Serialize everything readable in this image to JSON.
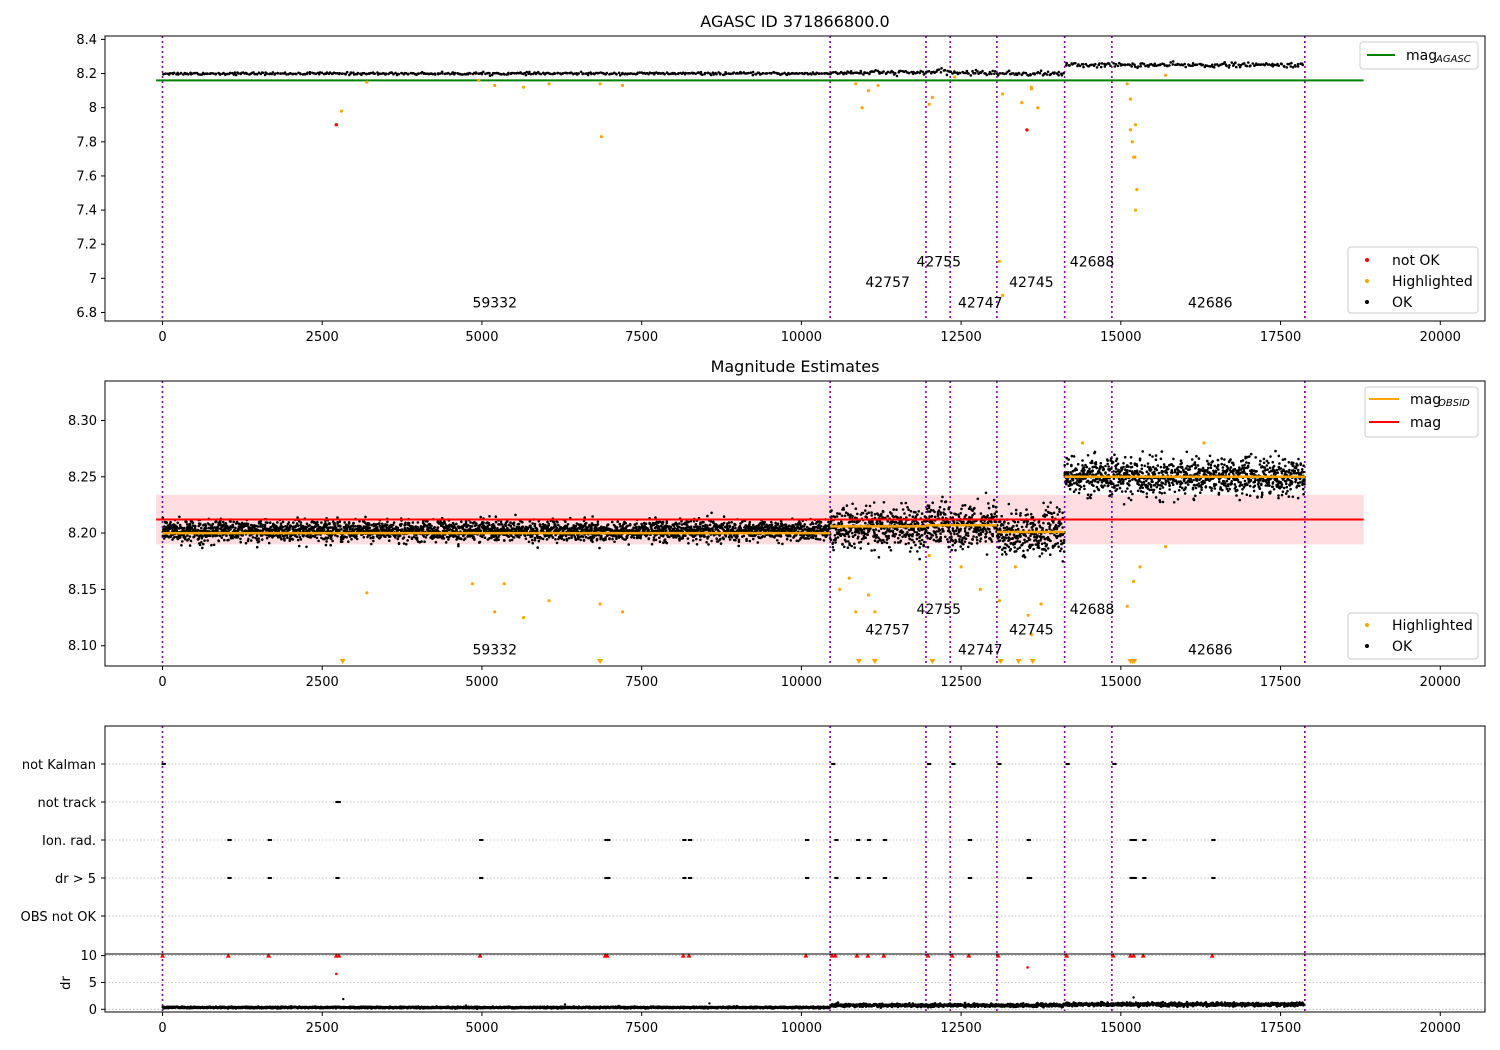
{
  "chart_data": [
    {
      "type": "scatter",
      "title": "AGASC ID 371866800.0",
      "xlabel": "",
      "ylabel": "",
      "xlim": [
        -900,
        20700
      ],
      "ylim": [
        6.75,
        8.42
      ],
      "x_ticks": [
        0,
        2500,
        5000,
        7500,
        10000,
        12500,
        15000,
        17500,
        20000
      ],
      "y_ticks": [
        6.8,
        7.0,
        7.2,
        7.4,
        7.6,
        7.8,
        8.0,
        8.2,
        8.4
      ],
      "legend_placement_lines": "top-right",
      "legend_placement_points": "bottom-right",
      "legend_lines": [
        {
          "label": "mag",
          "sub": "AGASC",
          "color": "#008000"
        }
      ],
      "legend_points": [
        {
          "label": "not OK",
          "color": "#ff0000"
        },
        {
          "label": "Highlighted",
          "color": "#ffa500"
        },
        {
          "label": "OK",
          "color": "#000000"
        }
      ],
      "agasc_mag": 8.16,
      "agasc_line_xrange": [
        -100,
        18800
      ],
      "ok_segments": [
        {
          "x0": 0,
          "x1": 10450,
          "level": 8.2,
          "spread": 0.008
        },
        {
          "x0": 10450,
          "x1": 11950,
          "level": 8.205,
          "spread": 0.015
        },
        {
          "x0": 11950,
          "x1": 12350,
          "level": 8.21,
          "spread": 0.015
        },
        {
          "x0": 12350,
          "x1": 13080,
          "level": 8.205,
          "spread": 0.015
        },
        {
          "x0": 13080,
          "x1": 14130,
          "level": 8.2,
          "spread": 0.015
        },
        {
          "x0": 14130,
          "x1": 14870,
          "level": 8.25,
          "spread": 0.015
        },
        {
          "x0": 14870,
          "x1": 17880,
          "level": 8.25,
          "spread": 0.015
        }
      ],
      "highlighted_points": [
        [
          2800,
          7.98
        ],
        [
          3200,
          8.15
        ],
        [
          4950,
          8.16
        ],
        [
          5200,
          8.13
        ],
        [
          5650,
          8.12
        ],
        [
          6050,
          8.14
        ],
        [
          6850,
          8.14
        ],
        [
          6870,
          7.83
        ],
        [
          7200,
          8.13
        ],
        [
          10850,
          8.14
        ],
        [
          10950,
          8.0
        ],
        [
          11050,
          8.1
        ],
        [
          11200,
          8.13
        ],
        [
          12000,
          8.02
        ],
        [
          12050,
          8.06
        ],
        [
          12400,
          8.18
        ],
        [
          13100,
          7.1
        ],
        [
          13150,
          8.08
        ],
        [
          13150,
          6.9
        ],
        [
          13450,
          8.03
        ],
        [
          13600,
          8.12
        ],
        [
          13600,
          8.11
        ],
        [
          13700,
          8.0
        ],
        [
          15100,
          8.14
        ],
        [
          15150,
          8.05
        ],
        [
          15150,
          7.87
        ],
        [
          15180,
          7.8
        ],
        [
          15200,
          7.71
        ],
        [
          15220,
          7.71
        ],
        [
          15230,
          7.9
        ],
        [
          15250,
          7.52
        ],
        [
          15230,
          7.4
        ],
        [
          15700,
          8.19
        ]
      ],
      "notok_points": [
        [
          2720,
          7.9
        ],
        [
          13530,
          7.87
        ]
      ],
      "obs_labels": [
        {
          "text": "59332",
          "x": 5200,
          "y": 6.83
        },
        {
          "text": "42757",
          "x": 11350,
          "y": 6.95
        },
        {
          "text": "42755",
          "x": 12150,
          "y": 7.07
        },
        {
          "text": "42747",
          "x": 12800,
          "y": 6.83
        },
        {
          "text": "42745",
          "x": 13600,
          "y": 6.95
        },
        {
          "text": "42688",
          "x": 14550,
          "y": 7.07
        },
        {
          "text": "42686",
          "x": 16400,
          "y": 6.83
        }
      ],
      "obs_boundaries": [
        0,
        10450,
        11950,
        12330,
        13060,
        14120,
        14860,
        17880
      ]
    },
    {
      "type": "scatter",
      "title": "Magnitude Estimates",
      "xlabel": "",
      "ylabel": "",
      "xlim": [
        -900,
        20700
      ],
      "ylim": [
        8.082,
        8.335
      ],
      "x_ticks": [
        0,
        2500,
        5000,
        7500,
        10000,
        12500,
        15000,
        17500,
        20000
      ],
      "y_ticks": [
        8.1,
        8.15,
        8.2,
        8.25,
        8.3
      ],
      "y_tick_labels": [
        "8.10",
        "8.15",
        "8.20",
        "8.25",
        "8.30"
      ],
      "legend_placement_lines": "top-right",
      "legend_placement_points": "bottom-right",
      "legend_lines": [
        {
          "label": "mag",
          "sub": "OBSID",
          "color": "#ffa500"
        },
        {
          "label": "mag",
          "sub": "",
          "color": "#ff0000"
        }
      ],
      "legend_points": [
        {
          "label": "Highlighted",
          "color": "#ffa500"
        },
        {
          "label": "OK",
          "color": "#000000"
        }
      ],
      "mag_mean": 8.212,
      "mag_band": [
        8.19,
        8.234
      ],
      "obsid_levels": [
        {
          "x0": 0,
          "x1": 10450,
          "y": 8.2
        },
        {
          "x0": 10450,
          "x1": 11950,
          "y": 8.206
        },
        {
          "x0": 11950,
          "x1": 12330,
          "y": 8.207
        },
        {
          "x0": 12330,
          "x1": 13060,
          "y": 8.207
        },
        {
          "x0": 13060,
          "x1": 14120,
          "y": 8.201
        },
        {
          "x0": 14120,
          "x1": 14860,
          "y": 8.25
        },
        {
          "x0": 14860,
          "x1": 17880,
          "y": 8.25
        }
      ],
      "ok_segments": [
        {
          "x0": 0,
          "x1": 10450,
          "level": 8.202,
          "spread": 0.01
        },
        {
          "x0": 10450,
          "x1": 11950,
          "level": 8.205,
          "spread": 0.02
        },
        {
          "x0": 11950,
          "x1": 12330,
          "level": 8.207,
          "spread": 0.02
        },
        {
          "x0": 12330,
          "x1": 13060,
          "level": 8.206,
          "spread": 0.02
        },
        {
          "x0": 13060,
          "x1": 14120,
          "level": 8.2,
          "spread": 0.02
        },
        {
          "x0": 14120,
          "x1": 14860,
          "level": 8.25,
          "spread": 0.018
        },
        {
          "x0": 14860,
          "x1": 17880,
          "level": 8.25,
          "spread": 0.018
        }
      ],
      "highlighted_points": [
        [
          3200,
          8.147
        ],
        [
          4850,
          8.155
        ],
        [
          5200,
          8.13
        ],
        [
          5350,
          8.155
        ],
        [
          5650,
          8.125
        ],
        [
          6050,
          8.14
        ],
        [
          6850,
          8.137
        ],
        [
          7200,
          8.13
        ],
        [
          10600,
          8.15
        ],
        [
          10750,
          8.16
        ],
        [
          10850,
          8.13
        ],
        [
          11050,
          8.145
        ],
        [
          11150,
          8.13
        ],
        [
          12000,
          8.18
        ],
        [
          12500,
          8.17
        ],
        [
          12800,
          8.15
        ],
        [
          13100,
          8.14
        ],
        [
          13350,
          8.17
        ],
        [
          13550,
          8.127
        ],
        [
          13600,
          8.11
        ],
        [
          13750,
          8.137
        ],
        [
          15100,
          8.135
        ],
        [
          15200,
          8.157
        ],
        [
          15300,
          8.17
        ],
        [
          15700,
          8.188
        ],
        [
          14400,
          8.28
        ],
        [
          16300,
          8.28
        ]
      ],
      "clipped_low_points": [
        2820,
        6850,
        10900,
        11150,
        12050,
        13120,
        13400,
        13620,
        15150,
        15180,
        15210
      ],
      "obs_labels": [
        {
          "text": "59332",
          "x": 5200,
          "y": 8.092
        },
        {
          "text": "42757",
          "x": 11350,
          "y": 8.11
        },
        {
          "text": "42755",
          "x": 12150,
          "y": 8.128
        },
        {
          "text": "42747",
          "x": 12800,
          "y": 8.092
        },
        {
          "text": "42745",
          "x": 13600,
          "y": 8.11
        },
        {
          "text": "42688",
          "x": 14550,
          "y": 8.128
        },
        {
          "text": "42686",
          "x": 16400,
          "y": 8.092
        }
      ],
      "obs_boundaries": [
        0,
        10450,
        11950,
        12330,
        13060,
        14120,
        14860,
        17880
      ]
    },
    {
      "type": "scatter",
      "title": "",
      "xlabel": "",
      "ylabel": "",
      "xlim": [
        -900,
        20700
      ],
      "flag_rows": [
        "not Kalman",
        "not track",
        "Ion. rad.",
        "dr > 5",
        "OBS not OK"
      ],
      "flag_points": {
        "not Kalman": [
          0,
          10480,
          11980,
          12360,
          13080,
          14150,
          14880
        ],
        "not track": [
          2720,
          2740
        ],
        "Ion. rad.": [
          1030,
          1660,
          4970,
          6930,
          6960,
          8150,
          8240,
          10070,
          10530,
          10870,
          11040,
          11290,
          12620,
          13540,
          15150,
          15200,
          15350,
          16430
        ],
        "dr > 5": [
          1030,
          1660,
          2720,
          4970,
          6930,
          6960,
          8150,
          8240,
          10070,
          10530,
          10870,
          11040,
          11290,
          12620,
          13540,
          13560,
          15150,
          15200,
          15350,
          16430
        ],
        "OBS not OK": []
      },
      "obs_boundaries": [
        0,
        10450,
        11950,
        12330,
        13060,
        14120,
        14860,
        17880
      ]
    },
    {
      "type": "scatter",
      "title": "",
      "xlabel": "",
      "ylabel": "dr",
      "xlim": [
        -900,
        20700
      ],
      "ylim": [
        -0.5,
        10.3
      ],
      "x_ticks": [
        0,
        2500,
        5000,
        7500,
        10000,
        12500,
        15000,
        17500,
        20000
      ],
      "y_ticks": [
        0,
        5,
        10
      ],
      "red_points_at_10": [
        0,
        1030,
        1660,
        2720,
        2760,
        4970,
        6930,
        6960,
        8150,
        8240,
        10070,
        10480,
        10530,
        10870,
        11040,
        11290,
        11980,
        12360,
        12620,
        13080,
        14150,
        14880,
        15150,
        15200,
        15350,
        16430
      ],
      "red_points_other": [
        [
          2720,
          6.6
        ],
        [
          13540,
          7.8
        ]
      ],
      "black_outliers": [
        [
          2830,
          1.9
        ],
        [
          8560,
          1.1
        ],
        [
          6300,
          0.9
        ],
        [
          15200,
          2.2
        ],
        [
          4750,
          0.7
        ],
        [
          11050,
          0.9
        ]
      ],
      "ok_segments": [
        {
          "x0": 0,
          "x1": 10450,
          "level": 0.35,
          "spread": 0.15
        },
        {
          "x0": 10450,
          "x1": 14120,
          "level": 0.75,
          "spread": 0.3
        },
        {
          "x0": 14120,
          "x1": 17880,
          "level": 0.9,
          "spread": 0.35
        }
      ],
      "obs_boundaries": [
        0,
        10450,
        11950,
        12330,
        13060,
        14120,
        14860,
        17880
      ]
    }
  ]
}
